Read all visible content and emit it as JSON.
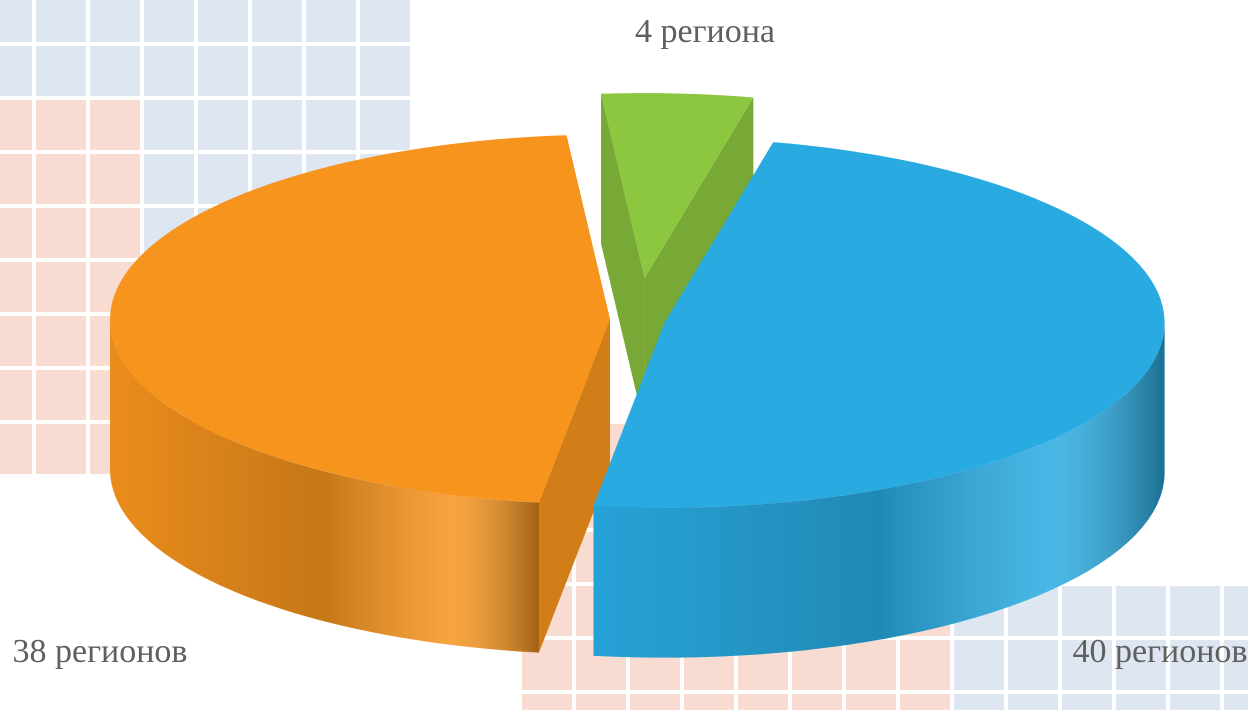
{
  "chart_data": {
    "type": "pie3d",
    "values": [
      4,
      40,
      38
    ],
    "value_labels": [
      "4 региона",
      "40 регионов",
      "38 регионов"
    ],
    "colors": [
      "#8dc63f",
      "#29abe2",
      "#f7941d"
    ]
  }
}
